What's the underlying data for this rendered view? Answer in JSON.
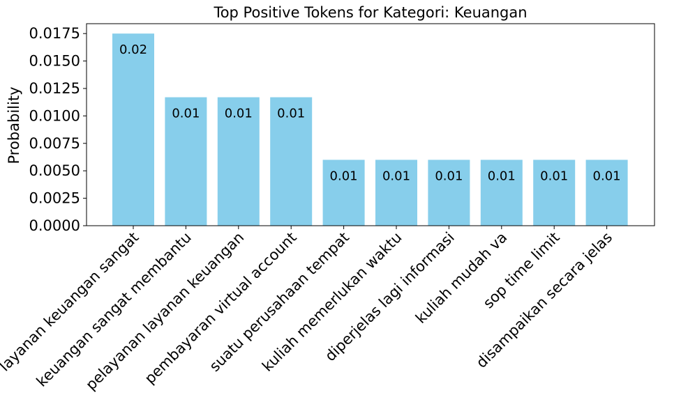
{
  "chart_data": {
    "type": "bar",
    "title": "Top Positive Tokens for Kategori: Keuangan",
    "xlabel": "",
    "ylabel": "Probability",
    "categories": [
      "layanan keuangan sangat",
      "keuangan sangat membantu",
      "pelayanan layanan keuangan",
      "pembayaran virtual account",
      "suatu perusahaan tempat",
      "kuliah memerlukan waktu",
      "diperjelas lagi informasi",
      "kuliah mudah va",
      "sop time limit",
      "disampaikan secara jelas"
    ],
    "values": [
      0.0175,
      0.0117,
      0.0117,
      0.0117,
      0.006,
      0.006,
      0.006,
      0.006,
      0.006,
      0.006
    ],
    "data_labels": [
      "0.02",
      "0.01",
      "0.01",
      "0.01",
      "0.01",
      "0.01",
      "0.01",
      "0.01",
      "0.01",
      "0.01"
    ],
    "ylim": [
      0,
      0.0184
    ],
    "yticks": [
      0.0,
      0.0025,
      0.005,
      0.0075,
      0.01,
      0.0125,
      0.015,
      0.0175
    ],
    "ytick_labels": [
      "0.0000",
      "0.0025",
      "0.0050",
      "0.0075",
      "0.0100",
      "0.0125",
      "0.0150",
      "0.0175"
    ],
    "bar_color": "#87CEEB",
    "grid": false,
    "legend": "none"
  }
}
